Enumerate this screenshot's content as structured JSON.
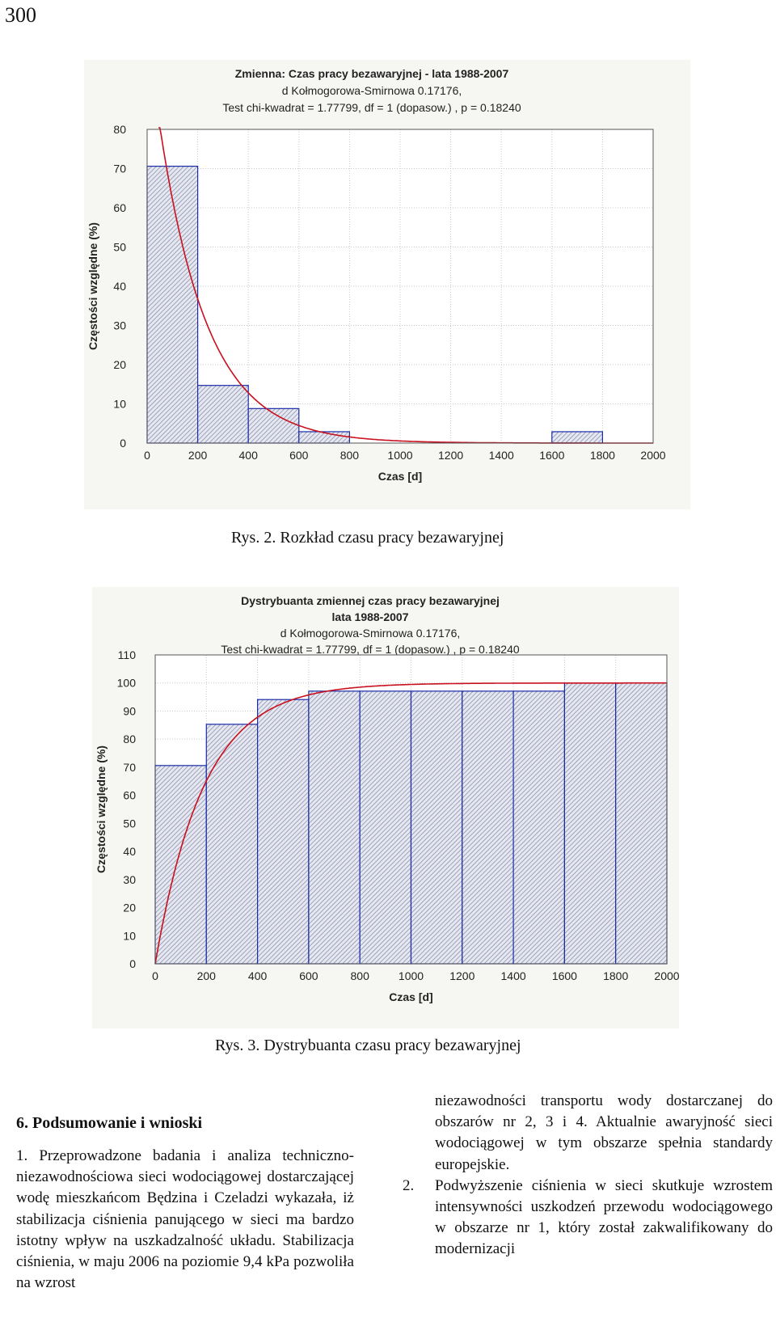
{
  "page_number": "300",
  "figure1": {
    "caption": "Rys. 2. Rozkład czasu pracy bezawaryjnej",
    "chart_data": {
      "type": "bar",
      "title": "Zmienna:  Czas pracy bezawaryjnej - lata 1988-2007",
      "subtitle": [
        "d Kołmogorowa-Smirnowa 0.17176,",
        "Test chi-kwadrat = 1.77799, df = 1 (dopasow.) , p = 0.18240"
      ],
      "xlabel": "Czas [d]",
      "ylabel": "Częstości względne (%)",
      "xlim": [
        0,
        2000
      ],
      "ylim": [
        0,
        80
      ],
      "xticks": [
        "0",
        "200",
        "400",
        "600",
        "800",
        "1000",
        "1200",
        "1400",
        "1600",
        "1800",
        "2000"
      ],
      "yticks": [
        "0",
        "10",
        "20",
        "30",
        "40",
        "50",
        "60",
        "70",
        "80"
      ],
      "bins": [
        {
          "from": 0,
          "to": 200,
          "value": 70.6
        },
        {
          "from": 200,
          "to": 400,
          "value": 14.7
        },
        {
          "from": 400,
          "to": 600,
          "value": 8.8
        },
        {
          "from": 600,
          "to": 800,
          "value": 2.9
        },
        {
          "from": 1600,
          "to": 1800,
          "value": 2.9
        }
      ],
      "fit_curve": "exponential density",
      "grid": true,
      "colors": {
        "bar_fill": "#c4c8d8",
        "bar_stroke": "#1a2ba8",
        "curve": "#c8101e"
      }
    }
  },
  "figure2": {
    "caption": "Rys. 3. Dystrybuanta czasu pracy bezawaryjnej",
    "chart_data": {
      "type": "bar",
      "title": [
        "Dystrybuanta zmiennej  czas pracy bezawaryjnej",
        "lata 1988-2007"
      ],
      "subtitle": [
        "d Kołmogorowa-Smirnowa 0.17176,",
        "Test chi-kwadrat = 1.77799, df = 1 (dopasow.) , p = 0.18240"
      ],
      "xlabel": "Czas [d]",
      "ylabel": "Częstości względne (%)",
      "xlim": [
        0,
        2000
      ],
      "ylim": [
        0,
        110
      ],
      "xticks": [
        "0",
        "200",
        "400",
        "600",
        "800",
        "1000",
        "1200",
        "1400",
        "1600",
        "1800",
        "2000"
      ],
      "yticks": [
        "0",
        "10",
        "20",
        "30",
        "40",
        "50",
        "60",
        "70",
        "80",
        "90",
        "100",
        "110"
      ],
      "bins": [
        {
          "from": 0,
          "to": 200,
          "value": 70.6
        },
        {
          "from": 200,
          "to": 400,
          "value": 85.3
        },
        {
          "from": 400,
          "to": 600,
          "value": 94.1
        },
        {
          "from": 600,
          "to": 800,
          "value": 97.1
        },
        {
          "from": 800,
          "to": 1000,
          "value": 97.1
        },
        {
          "from": 1000,
          "to": 1200,
          "value": 97.1
        },
        {
          "from": 1200,
          "to": 1400,
          "value": 97.1
        },
        {
          "from": 1400,
          "to": 1600,
          "value": 97.1
        },
        {
          "from": 1600,
          "to": 1800,
          "value": 100
        },
        {
          "from": 1800,
          "to": 2000,
          "value": 100
        }
      ],
      "fit_curve": "exponential CDF",
      "grid": true,
      "colors": {
        "bar_fill": "#c4c8d8",
        "bar_stroke": "#1a2ba8",
        "curve": "#c8101e"
      }
    }
  },
  "section": {
    "heading": "6. Podsumowanie i wnioski",
    "item1_number": "1.",
    "item1_left": "Przeprowadzone badania i analiza techniczno-niezawodnościowa sieci wodociągowej dostarczającej wodę mieszkańcom Będzina i Czeladzi wykazała, iż stabilizacja ciśnienia panującego w sieci ma bardzo istotny wpływ na uszkadzalność układu. Stabilizacja ciśnienia, w maju 2006 na poziomie 9,4 kPa pozwoliła na wzrost",
    "item1_right": "niezawodności transportu wody dostarczanej do obszarów nr 2, 3 i 4. Aktualnie awaryjność sieci wodociągowej w tym obszarze spełnia standardy europejskie.",
    "item2_number": "2.",
    "item2": "Podwyższenie ciśnienia w sieci skutkuje wzrostem intensywności uszkodzeń przewodu wodociągowego w obszarze nr 1, który został zakwalifikowany do modernizacji"
  }
}
